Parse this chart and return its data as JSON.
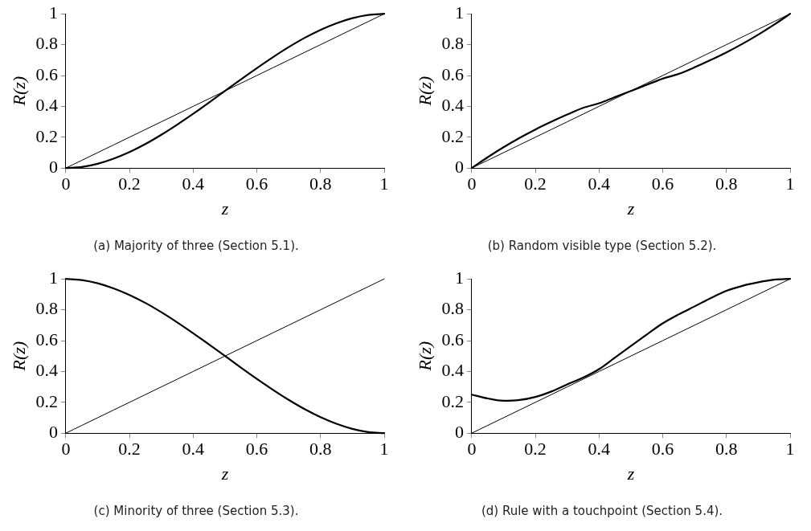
{
  "chart_data": [
    {
      "type": "line",
      "title": "(a) Majority of three (Section 5.1).",
      "xlabel": "z",
      "ylabel": "R(z)",
      "x": [
        0,
        0.05,
        0.1,
        0.15,
        0.2,
        0.25,
        0.3,
        0.35,
        0.4,
        0.45,
        0.5,
        0.55,
        0.6,
        0.65,
        0.7,
        0.75,
        0.8,
        0.85,
        0.9,
        0.95,
        1
      ],
      "xlim": [
        0,
        1
      ],
      "ylim": [
        0,
        1
      ],
      "xticks": [
        0,
        0.2,
        0.4,
        0.6,
        0.8,
        1
      ],
      "yticks": [
        0,
        0.2,
        0.4,
        0.6,
        0.8,
        1
      ],
      "grid": false,
      "legend": false,
      "marker": "none",
      "line_style": "solid",
      "series": [
        {
          "color": "#000000",
          "values": [
            0,
            0.007,
            0.028,
            0.061,
            0.104,
            0.156,
            0.216,
            0.282,
            0.352,
            0.425,
            0.5,
            0.575,
            0.648,
            0.718,
            0.784,
            0.844,
            0.896,
            0.939,
            0.972,
            0.993,
            1
          ]
        },
        {
          "color": "#000000",
          "values": [
            0,
            0.05,
            0.1,
            0.15,
            0.2,
            0.25,
            0.3,
            0.35,
            0.4,
            0.45,
            0.5,
            0.55,
            0.6,
            0.65,
            0.7,
            0.75,
            0.8,
            0.85,
            0.9,
            0.95,
            1
          ]
        }
      ]
    },
    {
      "type": "line",
      "title": "(b) Random visible type (Section 5.2).",
      "xlabel": "z",
      "ylabel": "R(z)",
      "x": [
        0,
        0.05,
        0.1,
        0.15,
        0.2,
        0.25,
        0.3,
        0.35,
        0.4,
        0.45,
        0.5,
        0.55,
        0.6,
        0.65,
        0.7,
        0.75,
        0.8,
        0.85,
        0.9,
        0.95,
        1
      ],
      "xlim": [
        0,
        1
      ],
      "ylim": [
        0,
        1
      ],
      "xticks": [
        0,
        0.2,
        0.4,
        0.6,
        0.8,
        1
      ],
      "yticks": [
        0,
        0.2,
        0.4,
        0.6,
        0.8,
        1
      ],
      "grid": false,
      "legend": false,
      "marker": "none",
      "line_style": "solid",
      "series": [
        {
          "color": "#000000",
          "values": [
            0,
            0.07,
            0.135,
            0.195,
            0.25,
            0.3,
            0.347,
            0.39,
            0.42,
            0.46,
            0.5,
            0.54,
            0.58,
            0.61,
            0.653,
            0.7,
            0.75,
            0.805,
            0.865,
            0.93,
            1
          ]
        },
        {
          "color": "#000000",
          "values": [
            0,
            0.05,
            0.1,
            0.15,
            0.2,
            0.25,
            0.3,
            0.35,
            0.4,
            0.45,
            0.5,
            0.55,
            0.6,
            0.65,
            0.7,
            0.75,
            0.8,
            0.85,
            0.9,
            0.95,
            1
          ]
        }
      ]
    },
    {
      "type": "line",
      "title": "(c) Minority of three (Section 5.3).",
      "xlabel": "z",
      "ylabel": "R(z)",
      "x": [
        0,
        0.05,
        0.1,
        0.15,
        0.2,
        0.25,
        0.3,
        0.35,
        0.4,
        0.45,
        0.5,
        0.55,
        0.6,
        0.65,
        0.7,
        0.75,
        0.8,
        0.85,
        0.9,
        0.95,
        1
      ],
      "xlim": [
        0,
        1
      ],
      "ylim": [
        0,
        1
      ],
      "xticks": [
        0,
        0.2,
        0.4,
        0.6,
        0.8,
        1
      ],
      "yticks": [
        0,
        0.2,
        0.4,
        0.6,
        0.8,
        1
      ],
      "grid": false,
      "legend": false,
      "marker": "none",
      "line_style": "solid",
      "series": [
        {
          "color": "#000000",
          "values": [
            1,
            0.993,
            0.972,
            0.939,
            0.896,
            0.844,
            0.784,
            0.718,
            0.648,
            0.575,
            0.5,
            0.425,
            0.352,
            0.282,
            0.216,
            0.156,
            0.104,
            0.061,
            0.028,
            0.007,
            0
          ]
        },
        {
          "color": "#000000",
          "values": [
            0,
            0.05,
            0.1,
            0.15,
            0.2,
            0.25,
            0.3,
            0.35,
            0.4,
            0.45,
            0.5,
            0.55,
            0.6,
            0.65,
            0.7,
            0.75,
            0.8,
            0.85,
            0.9,
            0.95,
            1
          ]
        }
      ]
    },
    {
      "type": "line",
      "title": "(d) Rule with a touchpoint (Section 5.4).",
      "xlabel": "z",
      "ylabel": "R(z)",
      "x": [
        0,
        0.05,
        0.1,
        0.15,
        0.2,
        0.25,
        0.3,
        0.35,
        0.4,
        0.45,
        0.5,
        0.55,
        0.6,
        0.65,
        0.7,
        0.75,
        0.8,
        0.85,
        0.9,
        0.95,
        1
      ],
      "xlim": [
        0,
        1
      ],
      "ylim": [
        0,
        1
      ],
      "xticks": [
        0,
        0.2,
        0.4,
        0.6,
        0.8,
        1
      ],
      "yticks": [
        0,
        0.2,
        0.4,
        0.6,
        0.8,
        1
      ],
      "grid": false,
      "legend": false,
      "marker": "none",
      "line_style": "solid",
      "series": [
        {
          "color": "#000000",
          "values": [
            0.25,
            0.225,
            0.21,
            0.215,
            0.235,
            0.27,
            0.316,
            0.36,
            0.415,
            0.49,
            0.565,
            0.64,
            0.712,
            0.77,
            0.822,
            0.875,
            0.923,
            0.955,
            0.978,
            0.995,
            1
          ]
        },
        {
          "color": "#000000",
          "values": [
            0,
            0.05,
            0.1,
            0.15,
            0.2,
            0.25,
            0.3,
            0.35,
            0.4,
            0.45,
            0.5,
            0.55,
            0.6,
            0.65,
            0.7,
            0.75,
            0.8,
            0.85,
            0.9,
            0.95,
            1
          ]
        }
      ]
    }
  ]
}
